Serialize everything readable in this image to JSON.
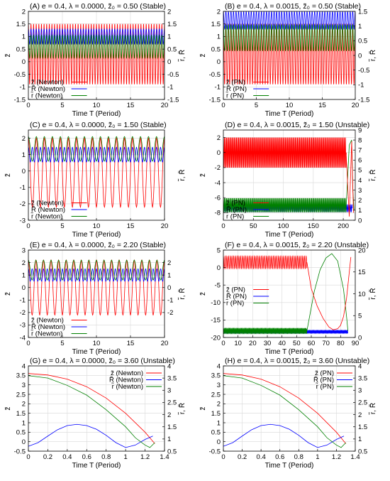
{
  "chart_data": [
    {
      "type": "line",
      "title": "(A) e = 0.4, λ = 0.0000, z̃₀ = 0.50 (Stable)",
      "xlabel": "Time T (Period)",
      "ylabel": "z̃",
      "y2label": "r̃, R̃",
      "xlim": [
        0,
        20
      ],
      "ylim": [
        -1.5,
        2
      ],
      "y2lim": [
        -1.5,
        2
      ],
      "xticks": [
        0,
        5,
        10,
        15,
        20
      ],
      "yticks": [
        -1.5,
        -1,
        -0.5,
        0,
        0.5,
        1,
        1.5,
        2
      ],
      "y2ticks": [
        -1.5,
        -1,
        -0.5,
        0,
        0.5,
        1,
        1.5,
        2
      ],
      "legend_position": "bottom-left",
      "series": [
        {
          "name": "z̃ (Newton)",
          "color": "#ff0000",
          "axis": "y",
          "kind": "osc",
          "center": 0.3,
          "amp": 1.2,
          "freq": 2.6,
          "from": 0,
          "to": 20
        },
        {
          "name": "R̃ (Newton)",
          "color": "#0000ff",
          "axis": "y2",
          "kind": "osc",
          "center": 1.0,
          "amp": 0.3,
          "freq": 2.6,
          "from": 0,
          "to": 20
        },
        {
          "name": "r̃ (Newton)",
          "color": "#008000",
          "axis": "y2",
          "kind": "osc",
          "center": 0.6,
          "amp": 0.45,
          "freq": 2.6,
          "from": 0,
          "to": 20
        }
      ]
    },
    {
      "type": "line",
      "title": "(B) e = 0.4, λ = 0.0015, z̃₀ = 0.50 (Stable)",
      "xlabel": "Time T (Period)",
      "ylabel": "z̃",
      "y2label": "r̃, R̃",
      "xlim": [
        0,
        20
      ],
      "ylim": [
        -1.5,
        2
      ],
      "y2lim": [
        -1.5,
        1.5
      ],
      "xticks": [
        0,
        5,
        10,
        15,
        20
      ],
      "yticks": [
        -1.5,
        -1,
        -0.5,
        0,
        0.5,
        1,
        1.5,
        2
      ],
      "y2ticks": [
        -1.5,
        -1,
        -0.5,
        0,
        0.5,
        1,
        1.5
      ],
      "legend_position": "bottom-left",
      "series": [
        {
          "name": "z̃ (PN)",
          "color": "#ff0000",
          "axis": "y",
          "kind": "osc",
          "center": 0.3,
          "amp": 1.2,
          "freq": 2.6,
          "from": 0,
          "to": 20
        },
        {
          "name": "R̃ (PN)",
          "color": "#0000ff",
          "axis": "y2",
          "kind": "osc",
          "center": 1.2,
          "amp": 0.3,
          "freq": 2.6,
          "from": 0,
          "to": 20
        },
        {
          "name": "r̃ (PN)",
          "color": "#008000",
          "axis": "y2",
          "kind": "osc",
          "center": 0.6,
          "amp": 0.45,
          "freq": 2.6,
          "from": 0,
          "to": 20
        }
      ]
    },
    {
      "type": "line",
      "title": "(C) e = 0.4, λ = 0.0000, z̃₀ = 1.50 (Stable)",
      "xlabel": "Time T (Period)",
      "ylabel": "z̃",
      "y2label": "r̃, R̃",
      "xlim": [
        0,
        20
      ],
      "ylim": [
        -3,
        2.5
      ],
      "y2lim": [
        -3,
        2.5
      ],
      "xticks": [
        0,
        5,
        10,
        15,
        20
      ],
      "yticks": [
        -3,
        -2,
        -1,
        0,
        1,
        2
      ],
      "y2ticks": [],
      "legend_position": "bottom-left",
      "series": [
        {
          "name": "z̃ (Newton)",
          "color": "#ff0000",
          "axis": "y",
          "kind": "osc",
          "center": -0.1,
          "amp": 2.1,
          "freq": 0.85,
          "from": 0,
          "to": 20
        },
        {
          "name": "R̃ (Newton)",
          "color": "#0000ff",
          "axis": "y2",
          "kind": "osc",
          "center": 1.0,
          "amp": 0.45,
          "freq": 1.7,
          "from": 0,
          "to": 20
        },
        {
          "name": "r̃ (Newton)",
          "color": "#008000",
          "axis": "y2",
          "kind": "osc",
          "center": 1.35,
          "amp": 0.75,
          "freq": 0.85,
          "from": 0,
          "to": 20
        }
      ]
    },
    {
      "type": "line",
      "title": "(D) e = 0.4, λ = 0.0015, z̃₀ = 1.50 (Unstable)",
      "xlabel": "Time T (Period)",
      "ylabel": "z̃",
      "y2label": "r̃, R̃",
      "xlim": [
        0,
        220
      ],
      "ylim": [
        -9,
        3
      ],
      "y2lim": [
        0,
        9
      ],
      "xticks": [
        0,
        50,
        100,
        150,
        200
      ],
      "yticks": [
        -8,
        -6,
        -4,
        -2,
        0,
        2
      ],
      "y2ticks": [
        0,
        1,
        2,
        3,
        4,
        5,
        6,
        7,
        8,
        9
      ],
      "legend_position": "bottom-left",
      "series": [
        {
          "name": "z̃ (PN)",
          "color": "#ff0000",
          "axis": "y",
          "kind": "osc",
          "center": 0.0,
          "amp": 2.0,
          "freq": 0.55,
          "from": 0,
          "to": 205
        },
        {
          "name": "R̃ (PN)",
          "color": "#0000ff",
          "axis": "y2",
          "kind": "osc",
          "center": 1.2,
          "amp": 0.35,
          "freq": 0.55,
          "from": 0,
          "to": 215
        },
        {
          "name": "r̃ (PN)",
          "color": "#008000",
          "axis": "y2",
          "kind": "osc",
          "center": 1.5,
          "amp": 0.7,
          "freq": 0.55,
          "from": 0,
          "to": 205
        },
        {
          "name": "",
          "color": "#008000",
          "axis": "y2",
          "kind": "points",
          "x": [
            205,
            210,
            214,
            216,
            218
          ],
          "y": [
            1.5,
            7.5,
            8.0,
            3.0,
            1.0
          ]
        },
        {
          "name": "",
          "color": "#ff0000",
          "axis": "y",
          "kind": "points",
          "x": [
            205,
            210,
            214,
            217
          ],
          "y": [
            -0.5,
            -8.5,
            1.5,
            -8.0
          ]
        }
      ]
    },
    {
      "type": "line",
      "title": "(E) e = 0.4, λ = 0.0000, z̃₀ = 2.20 (Stable)",
      "xlabel": "Time T (Period)",
      "ylabel": "z̃",
      "y2label": "r̃, R̃",
      "xlim": [
        0,
        20
      ],
      "ylim": [
        -4,
        3
      ],
      "y2lim": [
        -4,
        3
      ],
      "xticks": [
        0,
        5,
        10,
        15,
        20
      ],
      "yticks": [
        -4,
        -3,
        -2,
        -1,
        0,
        1,
        2,
        3
      ],
      "y2ticks": [
        -2,
        -1,
        0,
        1,
        2
      ],
      "legend_position": "bottom-left",
      "series": [
        {
          "name": "z̃ (Newton)",
          "color": "#ff0000",
          "axis": "y",
          "kind": "osc",
          "center": 0.0,
          "amp": 2.2,
          "freq": 0.9,
          "from": 0,
          "to": 20
        },
        {
          "name": "R̃ (Newton)",
          "color": "#0000ff",
          "axis": "y2",
          "kind": "osc",
          "center": 1.0,
          "amp": 0.5,
          "freq": 1.8,
          "from": 0,
          "to": 20
        },
        {
          "name": "r̃ (Newton)",
          "color": "#008000",
          "axis": "y2",
          "kind": "osc",
          "center": 1.4,
          "amp": 0.8,
          "freq": 0.9,
          "from": 0,
          "to": 20
        }
      ]
    },
    {
      "type": "line",
      "title": "(F) e = 0.4, λ = 0.0015, z̃₀ = 2.20 (Unstable)",
      "xlabel": "Time T (Period)",
      "ylabel": "z̃",
      "y2label": "r̃, R̃",
      "xlim": [
        0,
        90
      ],
      "ylim": [
        -20,
        5
      ],
      "y2lim": [
        0,
        20
      ],
      "xticks": [
        0,
        10,
        20,
        30,
        40,
        50,
        60,
        70,
        80,
        90
      ],
      "yticks": [
        -20,
        -15,
        -10,
        -5,
        0,
        5
      ],
      "y2ticks": [
        0,
        5,
        10,
        15,
        20
      ],
      "legend_position": "center-left",
      "series": [
        {
          "name": "z̃ (PN)",
          "color": "#ff0000",
          "axis": "y",
          "kind": "osc",
          "center": 1.5,
          "amp": 1.8,
          "freq": 0.85,
          "from": 0,
          "to": 57
        },
        {
          "name": "R̃ (PN)",
          "color": "#0000ff",
          "axis": "y2",
          "kind": "osc",
          "center": 1.3,
          "amp": 0.35,
          "freq": 1.7,
          "from": 0,
          "to": 85
        },
        {
          "name": "r̃ (PN)",
          "color": "#008000",
          "axis": "y2",
          "kind": "osc",
          "center": 1.5,
          "amp": 0.6,
          "freq": 1.7,
          "from": 0,
          "to": 57
        },
        {
          "name": "",
          "color": "#008000",
          "axis": "y2",
          "kind": "points",
          "x": [
            57,
            62,
            66,
            70,
            74,
            78,
            82,
            84,
            85
          ],
          "y": [
            1.5,
            10.5,
            15.5,
            18.2,
            19.2,
            17.5,
            11.0,
            5.0,
            1.5
          ]
        },
        {
          "name": "",
          "color": "#ff0000",
          "axis": "y",
          "kind": "points",
          "x": [
            57,
            60,
            64,
            68,
            72,
            75,
            78,
            80,
            82,
            84,
            86,
            87
          ],
          "y": [
            1.5,
            -6.0,
            -11.0,
            -14.5,
            -17.0,
            -17.8,
            -17.5,
            -16.5,
            -14.0,
            -9.0,
            -1.0,
            3.0
          ]
        }
      ]
    },
    {
      "type": "line",
      "title": "(G) e = 0.4, λ = 0.0000, z̃₀ = 3.60 (Unstable)",
      "xlabel": "Time T (Period)",
      "ylabel": "z̃",
      "y2label": "r̃, R̃",
      "xlim": [
        0,
        1.4
      ],
      "ylim": [
        -0.5,
        4
      ],
      "y2lim": [
        0.5,
        4
      ],
      "xticks": [
        0,
        0.2,
        0.4,
        0.6,
        0.8,
        1,
        1.2,
        1.4
      ],
      "yticks": [
        -0.5,
        0,
        0.5,
        1,
        1.5,
        2,
        2.5,
        3,
        3.5,
        4
      ],
      "y2ticks": [
        0.5,
        1,
        1.5,
        2,
        2.5,
        3,
        3.5,
        4
      ],
      "legend_position": "top-right",
      "series": [
        {
          "name": "z̃ (Newton)",
          "color": "#ff0000",
          "axis": "y",
          "kind": "points",
          "x": [
            0,
            0.2,
            0.4,
            0.6,
            0.8,
            1.0,
            1.2,
            1.3
          ],
          "y": [
            3.6,
            3.52,
            3.3,
            2.9,
            2.3,
            1.5,
            0.5,
            -0.1
          ]
        },
        {
          "name": "R̃ (Newton)",
          "color": "#0000ff",
          "axis": "y2",
          "kind": "points",
          "x": [
            0,
            0.1,
            0.2,
            0.3,
            0.4,
            0.5,
            0.6,
            0.7,
            0.8,
            0.9,
            1.0,
            1.1,
            1.2,
            1.28
          ],
          "y": [
            0.7,
            0.85,
            1.12,
            1.38,
            1.55,
            1.6,
            1.55,
            1.4,
            1.15,
            0.85,
            0.65,
            0.75,
            0.98,
            1.12
          ]
        },
        {
          "name": "r̃ (Newton)",
          "color": "#008000",
          "axis": "y2",
          "kind": "points",
          "x": [
            0,
            0.2,
            0.4,
            0.6,
            0.8,
            1.0,
            1.1,
            1.2,
            1.25,
            1.3
          ],
          "y": [
            3.6,
            3.5,
            3.2,
            2.8,
            2.2,
            1.5,
            1.05,
            0.75,
            0.65,
            0.85
          ]
        }
      ]
    },
    {
      "type": "line",
      "title": "(H) e = 0.4, λ = 0.0015, z̃₀ = 3.60 (Unstable)",
      "xlabel": "Time T (Period)",
      "ylabel": "z̃",
      "y2label": "r̃, R̃",
      "xlim": [
        0,
        1.4
      ],
      "ylim": [
        -0.5,
        4
      ],
      "y2lim": [
        0.5,
        4
      ],
      "xticks": [
        0,
        0.2,
        0.4,
        0.6,
        0.8,
        1,
        1.2,
        1.4
      ],
      "yticks": [
        -0.5,
        0,
        0.5,
        1,
        1.5,
        2,
        2.5,
        3,
        3.5,
        4
      ],
      "y2ticks": [
        0.5,
        1,
        1.5,
        2,
        2.5,
        3,
        3.5,
        4
      ],
      "legend_position": "top-right",
      "series": [
        {
          "name": "z̃ (PN)",
          "color": "#ff0000",
          "axis": "y",
          "kind": "points",
          "x": [
            0,
            0.2,
            0.4,
            0.6,
            0.8,
            1.0,
            1.2,
            1.3
          ],
          "y": [
            3.6,
            3.52,
            3.3,
            2.9,
            2.3,
            1.5,
            0.5,
            -0.1
          ]
        },
        {
          "name": "R̃ (PN)",
          "color": "#0000ff",
          "axis": "y2",
          "kind": "points",
          "x": [
            0,
            0.1,
            0.2,
            0.3,
            0.4,
            0.5,
            0.6,
            0.7,
            0.8,
            0.9,
            1.0,
            1.1,
            1.2,
            1.28
          ],
          "y": [
            0.7,
            0.85,
            1.12,
            1.38,
            1.55,
            1.6,
            1.55,
            1.4,
            1.15,
            0.85,
            0.65,
            0.75,
            0.98,
            1.12
          ]
        },
        {
          "name": "r̃ (PN)",
          "color": "#008000",
          "axis": "y2",
          "kind": "points",
          "x": [
            0,
            0.2,
            0.4,
            0.6,
            0.8,
            1.0,
            1.1,
            1.2,
            1.25,
            1.3
          ],
          "y": [
            3.6,
            3.5,
            3.2,
            2.8,
            2.2,
            1.5,
            1.05,
            0.75,
            0.65,
            0.85
          ]
        }
      ]
    }
  ]
}
